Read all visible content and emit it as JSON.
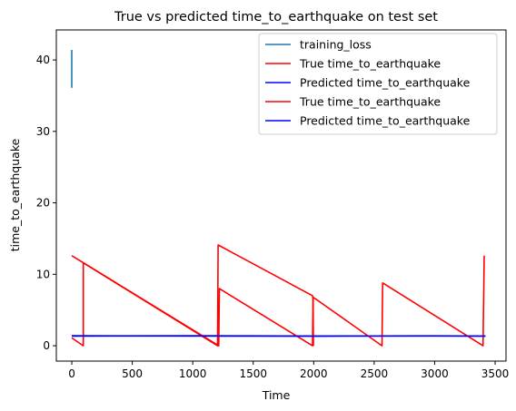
{
  "chart_data": {
    "type": "line",
    "title": "True vs predicted time_to_earthquake on test set",
    "xlabel": "Time",
    "ylabel": "time_to_earthquake",
    "xlim": [
      -128,
      3590
    ],
    "ylim": [
      -2.15,
      44.2
    ],
    "xticks": [
      0,
      500,
      1000,
      1500,
      2000,
      2500,
      3000,
      3500
    ],
    "yticks": [
      0,
      10,
      20,
      30,
      40
    ],
    "grid": false,
    "legend_position": "top-right",
    "series": [
      {
        "name": "training_loss",
        "color": "#1f77b4",
        "points": [
          [
            0,
            41.4
          ],
          [
            0,
            36.1
          ]
        ]
      },
      {
        "name": "True time_to_earthquake",
        "color": "#ff0000",
        "points": [
          [
            0,
            1.1
          ],
          [
            95,
            0.0
          ],
          [
            95,
            11.6
          ],
          [
            1205,
            0.0
          ],
          [
            1210,
            14.1
          ],
          [
            1990,
            7.0
          ],
          [
            1995,
            6.5
          ],
          [
            1998,
            0.0
          ]
        ]
      },
      {
        "name": "Predicted time_to_earthquake",
        "color": "#0000ff",
        "points": [
          [
            0,
            1.4
          ],
          [
            500,
            1.38
          ],
          [
            1000,
            1.4
          ],
          [
            1500,
            1.38
          ],
          [
            2000,
            1.36
          ],
          [
            2500,
            1.37
          ],
          [
            3000,
            1.38
          ],
          [
            3420,
            1.36
          ]
        ]
      },
      {
        "name": "True time_to_earthquake",
        "color": "#ff0000",
        "points": [
          [
            0,
            12.6
          ],
          [
            1215,
            0.0
          ],
          [
            1220,
            8.0
          ],
          [
            1990,
            0.0
          ],
          [
            1995,
            6.8
          ],
          [
            2565,
            0.0
          ],
          [
            2570,
            8.8
          ],
          [
            3400,
            0.0
          ],
          [
            3410,
            12.6
          ]
        ]
      },
      {
        "name": "Predicted time_to_earthquake",
        "color": "#0000ff",
        "points": [
          [
            0,
            1.36
          ],
          [
            700,
            1.37
          ],
          [
            1400,
            1.35
          ],
          [
            2100,
            1.36
          ],
          [
            2800,
            1.37
          ],
          [
            3420,
            1.35
          ]
        ]
      }
    ]
  }
}
